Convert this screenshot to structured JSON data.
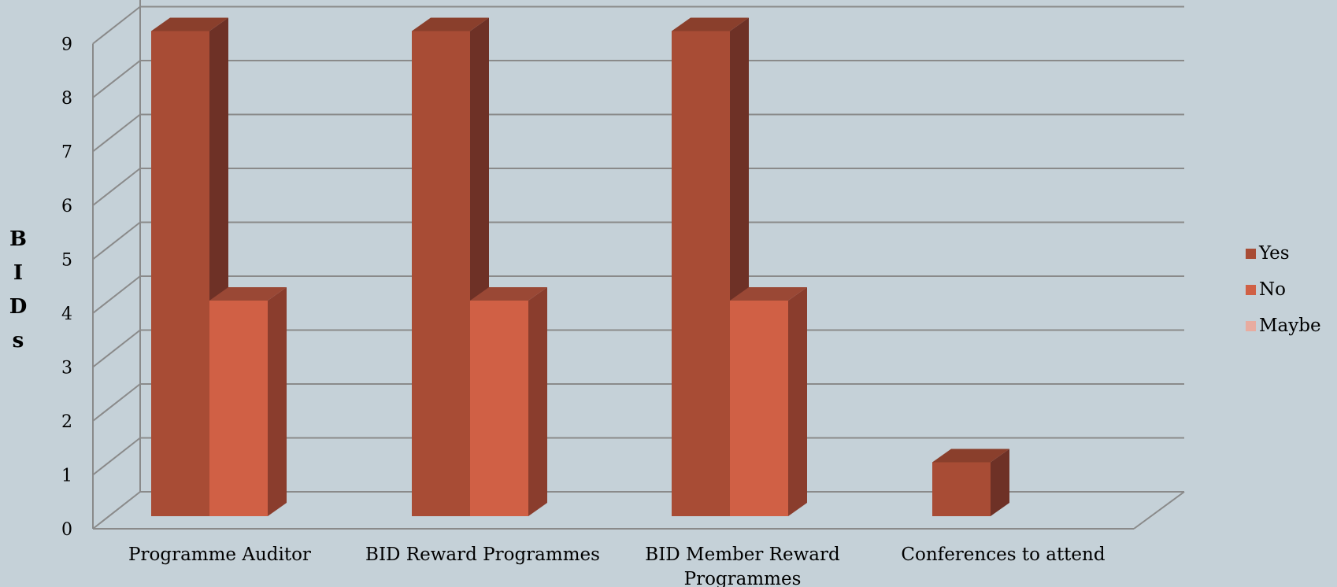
{
  "chart_data": {
    "type": "bar",
    "style": "3d-clustered-column",
    "categories": [
      "Programme Auditor",
      "BID Reward Programmes",
      "BID Member Reward Programmes",
      "Conferences to attend"
    ],
    "category_labels": [
      [
        "Programme Auditor"
      ],
      [
        "BID Reward Programmes"
      ],
      [
        "BID Member Reward",
        "Programmes"
      ],
      [
        "Conferences to attend"
      ]
    ],
    "series": [
      {
        "name": "Yes",
        "values": [
          9,
          9,
          9,
          1
        ],
        "color": "#a84c35"
      },
      {
        "name": "No",
        "values": [
          4,
          4,
          4,
          0
        ],
        "color": "#d06045"
      },
      {
        "name": "Maybe",
        "values": [
          0,
          0,
          0,
          0
        ],
        "color": "#e8aca0"
      }
    ],
    "ylabel": "BIDs",
    "ylabel_letters": [
      "B",
      "I",
      "D",
      "s"
    ],
    "ylim": [
      0,
      9
    ],
    "yticks": [
      "0",
      "1",
      "2",
      "3",
      "4",
      "5",
      "6",
      "7",
      "8",
      "9"
    ],
    "grid": true,
    "legend": "right",
    "colors": {
      "background": "#c5d1d8",
      "gridline": "#8a8a8a",
      "yes_side": "#6e3126",
      "yes_top": "#8a3f2c",
      "no_side": "#8a3d2d",
      "no_top": "#9a4835"
    }
  }
}
